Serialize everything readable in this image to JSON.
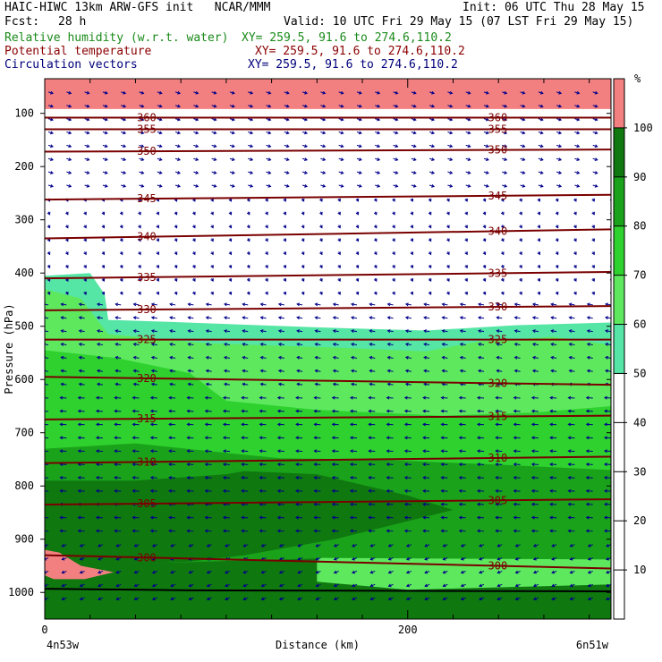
{
  "header": {
    "model_line": "HAIC-HIWC 13km ARW-GFS init   NCAR/MMM",
    "init_line": "Init: 06 UTC Thu 28 May 15",
    "fcst_label": "Fcst:",
    "fcst_value": "28 h",
    "valid_line": "Valid: 10 UTC Fri 29 May 15 (07 LST Fri 29 May 15)",
    "fields": [
      {
        "name": "Relative humidity (w.r.t. water)",
        "xy": "XY= 259.5, 91.6 to 274.6,110.2",
        "color": "#1a8a1a"
      },
      {
        "name": "Potential temperature",
        "xy": "XY= 259.5, 91.6 to 274.6,110.2",
        "color": "#8b0000"
      },
      {
        "name": "Circulation vectors",
        "xy": "XY= 259.5, 91.6 to 274.6,110.2",
        "color": "#00007a"
      }
    ]
  },
  "chart_data": {
    "type": "heatmap",
    "title": "HAIC-HIWC 13km ARW-GFS init",
    "xlabel": "Distance (km)",
    "ylabel": "Pressure (hPa)",
    "x_ticks": [
      0,
      200
    ],
    "xlim": [
      0,
      312
    ],
    "y_ticks": [
      100,
      200,
      300,
      400,
      500,
      600,
      700,
      800,
      900,
      1000
    ],
    "ylim": [
      1050,
      35
    ],
    "x_end_labels": {
      "left": "4n53w",
      "right": "6n51w"
    },
    "colorbar": {
      "unit": "%",
      "bounds": [
        10,
        20,
        30,
        40,
        50,
        60,
        70,
        80,
        90,
        100
      ],
      "colors": [
        "#ffffff",
        "#ffffff",
        "#ffffff",
        "#ffffff",
        "#ffffff",
        "#55e5a5",
        "#5ee85e",
        "#2ed12e",
        "#1aa31a",
        "#0f780f",
        "#f38080"
      ]
    },
    "rh_regions": [
      {
        "level": 50,
        "points": [
          [
            0,
            405
          ],
          [
            25,
            400
          ],
          [
            33,
            440
          ],
          [
            35,
            488
          ],
          [
            70,
            492
          ],
          [
            150,
            502
          ],
          [
            210,
            508
          ],
          [
            260,
            498
          ],
          [
            312,
            493
          ],
          [
            312,
            1050
          ],
          [
            0,
            1050
          ]
        ]
      },
      {
        "level": 60,
        "points": [
          [
            0,
            430
          ],
          [
            20,
            448
          ],
          [
            35,
            515
          ],
          [
            90,
            532
          ],
          [
            160,
            540
          ],
          [
            210,
            547
          ],
          [
            240,
            528
          ],
          [
            280,
            520
          ],
          [
            312,
            535
          ],
          [
            312,
            1050
          ],
          [
            0,
            1050
          ]
        ]
      },
      {
        "level": 70,
        "points": [
          [
            0,
            545
          ],
          [
            40,
            560
          ],
          [
            80,
            588
          ],
          [
            92,
            620
          ],
          [
            100,
            640
          ],
          [
            150,
            657
          ],
          [
            220,
            668
          ],
          [
            270,
            662
          ],
          [
            312,
            650
          ],
          [
            312,
            1050
          ],
          [
            0,
            1050
          ]
        ]
      },
      {
        "level": 80,
        "points": [
          [
            0,
            730
          ],
          [
            50,
            720
          ],
          [
            100,
            738
          ],
          [
            130,
            748
          ],
          [
            180,
            750
          ],
          [
            250,
            760
          ],
          [
            312,
            770
          ],
          [
            312,
            1050
          ],
          [
            0,
            1050
          ]
        ]
      },
      {
        "level": 90,
        "points": [
          [
            0,
            790
          ],
          [
            50,
            790
          ],
          [
            100,
            778
          ],
          [
            110,
            772
          ],
          [
            150,
            778
          ],
          [
            200,
            818
          ],
          [
            225,
            845
          ],
          [
            160,
            900
          ],
          [
            110,
            930
          ],
          [
            80,
            942
          ],
          [
            60,
            945
          ],
          [
            40,
            958
          ],
          [
            20,
            968
          ],
          [
            0,
            975
          ]
        ]
      },
      {
        "level": 90,
        "points": [
          [
            60,
            945
          ],
          [
            160,
            935
          ],
          [
            312,
            945
          ],
          [
            312,
            1050
          ],
          [
            0,
            1050
          ],
          [
            0,
            975
          ]
        ]
      },
      {
        "level": 100,
        "points": [
          [
            0,
            920
          ],
          [
            8,
            925
          ],
          [
            20,
            950
          ],
          [
            38,
            962
          ],
          [
            22,
            975
          ],
          [
            5,
            975
          ],
          [
            0,
            968
          ]
        ]
      },
      {
        "level": 60,
        "points": [
          [
            150,
            935
          ],
          [
            312,
            938
          ],
          [
            312,
            985
          ],
          [
            200,
            995
          ],
          [
            150,
            980
          ]
        ]
      },
      {
        "level": 100,
        "points": [
          [
            0,
            35
          ],
          [
            312,
            35
          ],
          [
            312,
            92
          ],
          [
            0,
            92
          ]
        ]
      }
    ],
    "theta_contours": [
      {
        "value": 360,
        "y": [
          108,
          108
        ]
      },
      {
        "value": 355,
        "y": [
          130,
          130
        ]
      },
      {
        "value": 350,
        "y": [
          172,
          168
        ]
      },
      {
        "value": 345,
        "y": [
          262,
          253
        ]
      },
      {
        "value": 340,
        "y": [
          335,
          318
        ]
      },
      {
        "value": 335,
        "y": [
          410,
          398
        ]
      },
      {
        "value": 330,
        "y": [
          470,
          462
        ]
      },
      {
        "value": 325,
        "y": [
          525,
          525
        ]
      },
      {
        "value": 320,
        "y": [
          595,
          610
        ]
      },
      {
        "value": 315,
        "y": [
          675,
          668
        ]
      },
      {
        "value": 310,
        "y": [
          757,
          745
        ]
      },
      {
        "value": 305,
        "y": [
          835,
          825
        ]
      },
      {
        "value": 300,
        "y": [
          930,
          955
        ]
      }
    ],
    "vector_field": {
      "x_step_km": 10,
      "y_step_hPa": 25,
      "description": "Circulation vectors"
    }
  }
}
